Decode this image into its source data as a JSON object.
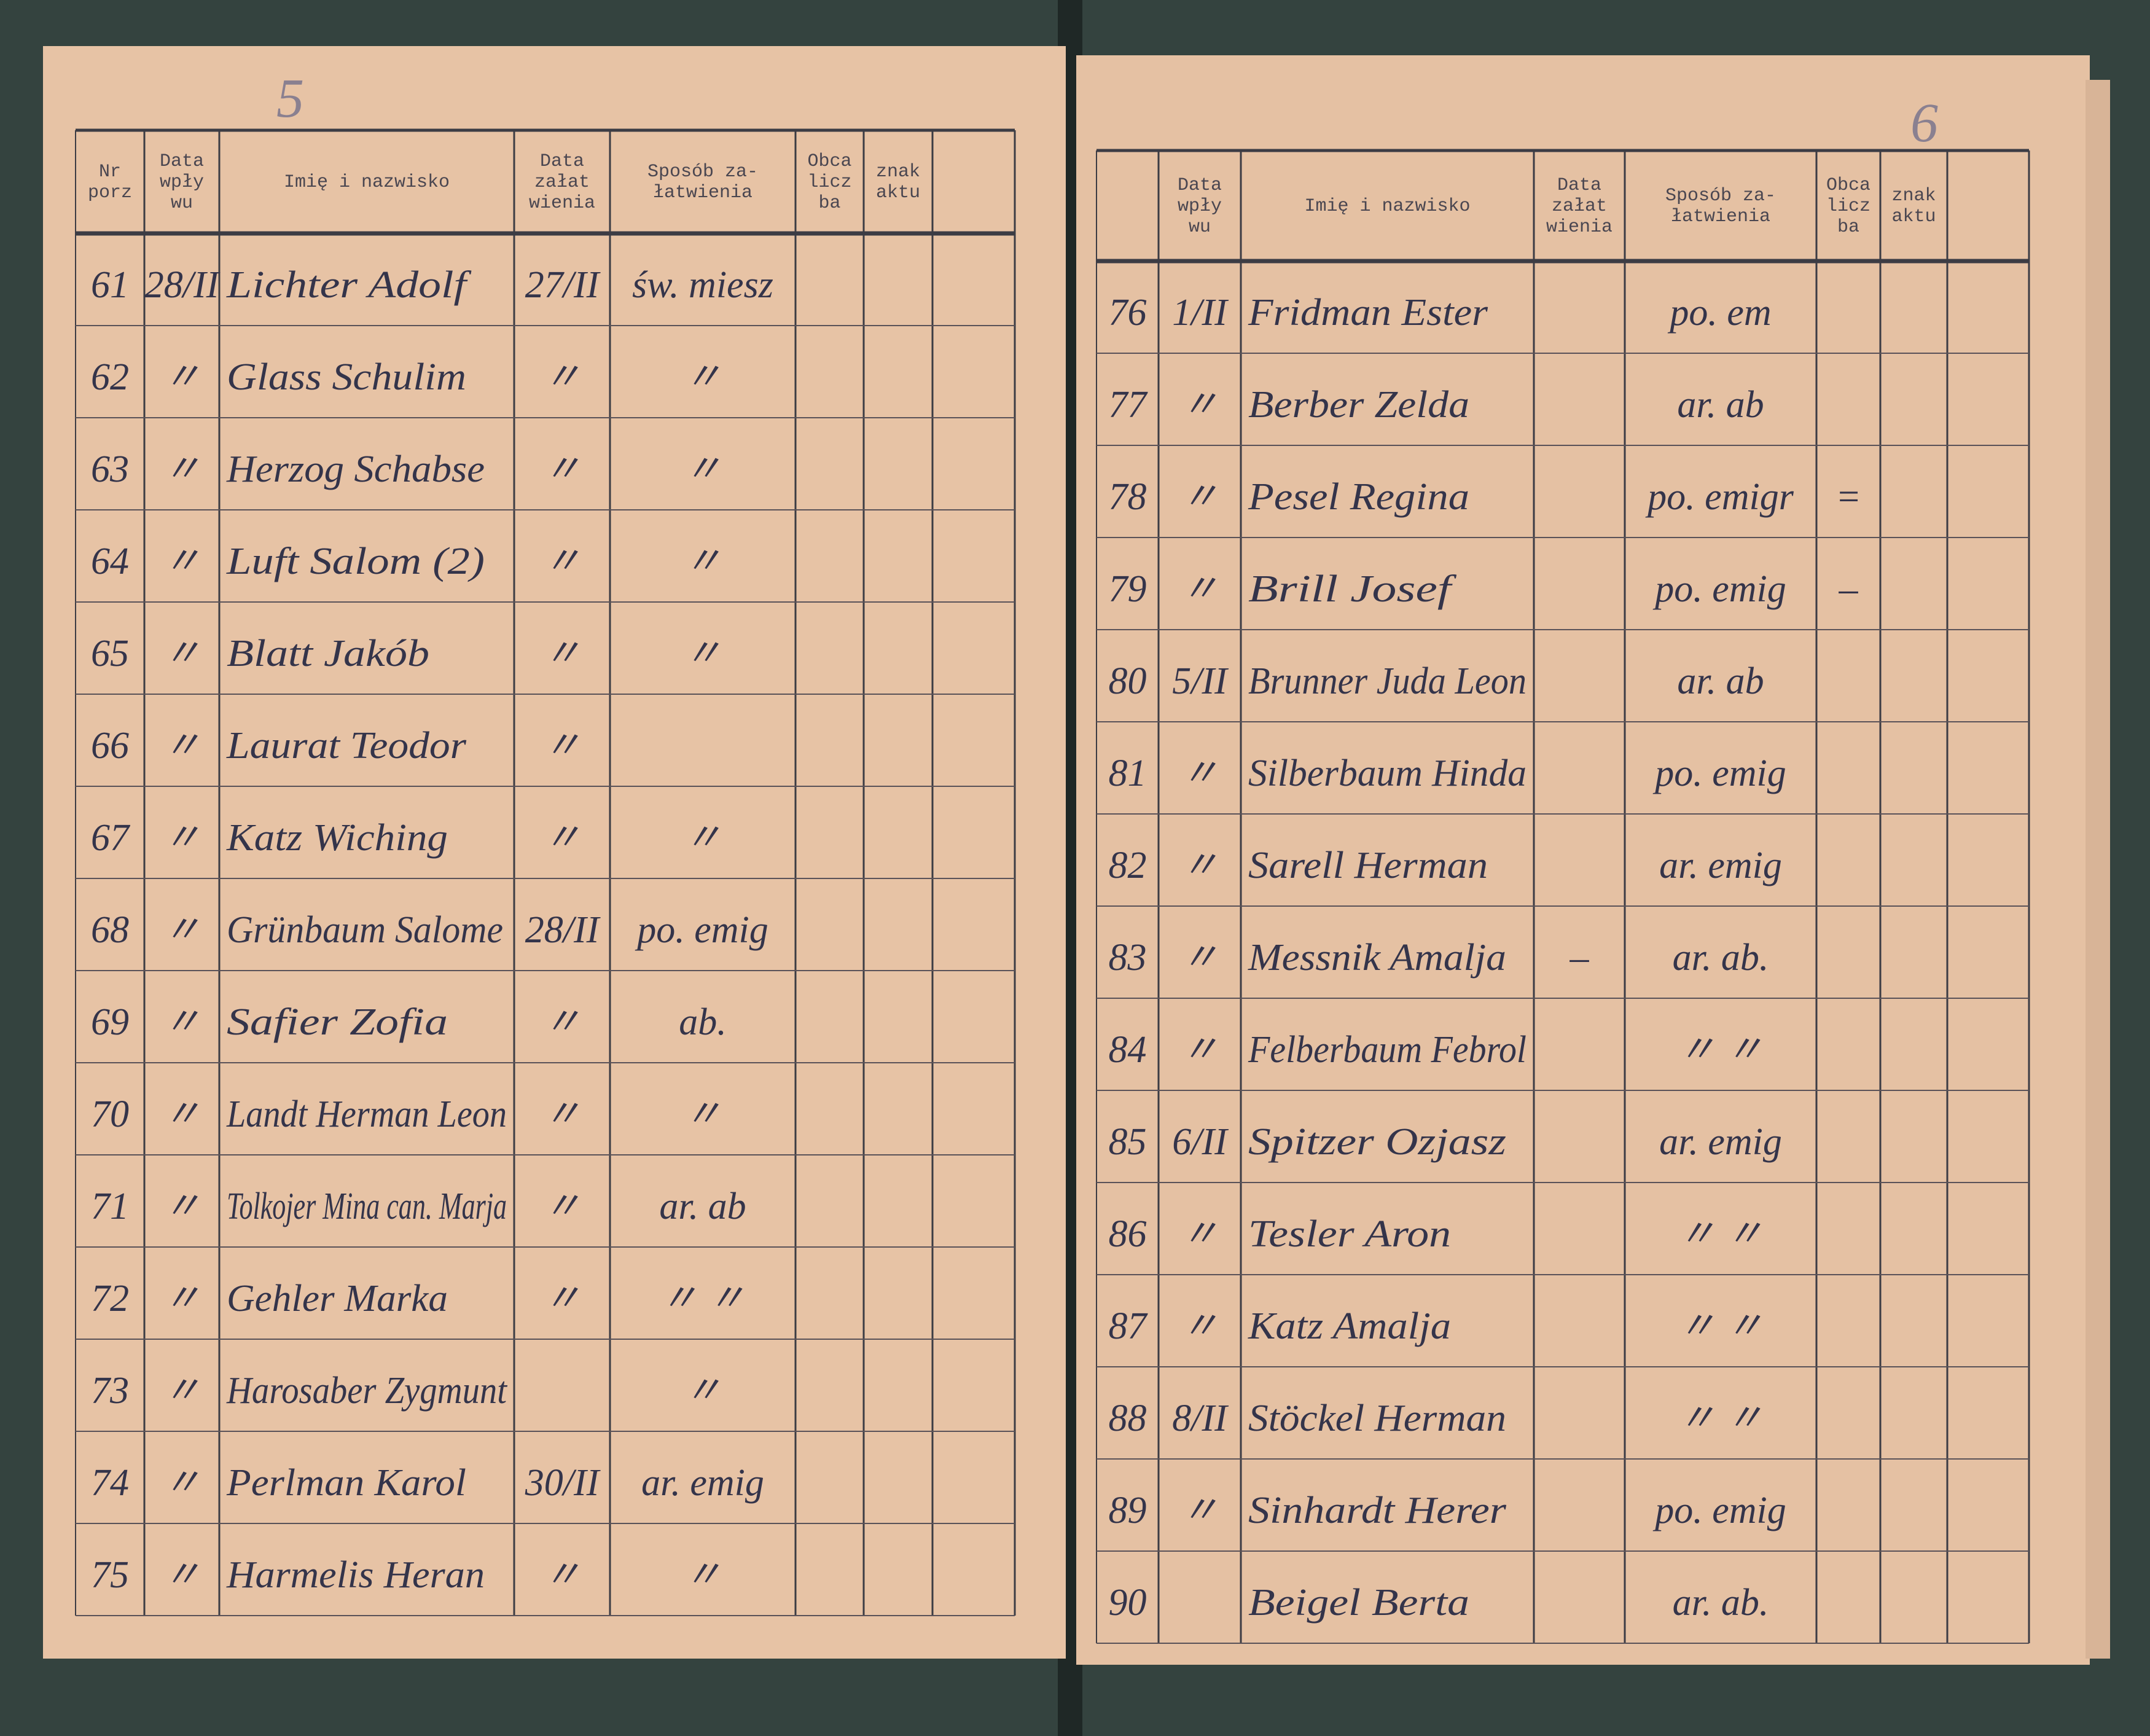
{
  "pages": [
    {
      "page_number": "5",
      "headers": [
        [
          "Nr",
          "porz"
        ],
        [
          "Data",
          "wpły",
          "wu"
        ],
        [
          "Imię i nazwisko"
        ],
        [
          "Data",
          "załat",
          "wienia"
        ],
        [
          "Sposób za-",
          "łatwienia"
        ],
        [
          "Obca",
          "licz",
          "ba"
        ],
        [
          "znak",
          "aktu"
        ]
      ],
      "rows": [
        {
          "nr": "61",
          "received": "28/II",
          "name": "Lichter Adolf",
          "done": "27/II",
          "method": "św. miesz"
        },
        {
          "nr": "62",
          "received": "〃",
          "name": "Glass Schulim",
          "done": "〃",
          "method": "〃"
        },
        {
          "nr": "63",
          "received": "〃",
          "name": "Herzog Schabse",
          "done": "〃",
          "method": "〃"
        },
        {
          "nr": "64",
          "received": "〃",
          "name": "Luft Salom (2)",
          "done": "〃",
          "method": "〃"
        },
        {
          "nr": "65",
          "received": "〃",
          "name": "Blatt Jakób",
          "done": "〃",
          "method": "〃"
        },
        {
          "nr": "66",
          "received": "〃",
          "name": "Laurat Teodor",
          "done": "〃"
        },
        {
          "nr": "67",
          "received": "〃",
          "name": "Katz Wiching",
          "done": "〃",
          "method": "〃"
        },
        {
          "nr": "68",
          "received": "〃",
          "name": "Grünbaum Salome",
          "done": "28/II",
          "method": "po. emig"
        },
        {
          "nr": "69",
          "received": "〃",
          "name": "Safier Zofia",
          "done": "〃",
          "method": "ab."
        },
        {
          "nr": "70",
          "received": "〃",
          "name": "Landt Herman Leon",
          "done": "〃",
          "method": "〃"
        },
        {
          "nr": "71",
          "received": "〃",
          "name": "Tolkojer Mina can. Marja",
          "done": "〃",
          "method": "ar. ab"
        },
        {
          "nr": "72",
          "received": "〃",
          "name": "Gehler Marka",
          "done": "〃",
          "method": "〃 〃"
        },
        {
          "nr": "73",
          "received": "〃",
          "name": "Harosaber Zygmunt",
          "method": "〃"
        },
        {
          "nr": "74",
          "received": "〃",
          "name": "Perlman Karol",
          "done": "30/II",
          "method": "ar. emig"
        },
        {
          "nr": "75",
          "received": "〃",
          "name": "Harmelis Heran",
          "done": "〃",
          "method": "〃"
        }
      ]
    },
    {
      "page_number": "6",
      "headers": [
        [
          "Data",
          "wpły",
          "wu"
        ],
        [
          "Imię i nazwisko"
        ],
        [
          "Data",
          "załat",
          "wienia"
        ],
        [
          "Sposób za-",
          "łatwienia"
        ],
        [
          "Obca",
          "licz",
          "ba"
        ],
        [
          "znak",
          "aktu"
        ]
      ],
      "rows": [
        {
          "nr": "76",
          "received": "1/II",
          "name": "Fridman Ester",
          "method": "po. em"
        },
        {
          "nr": "77",
          "received": "〃",
          "name": "Berber Zelda",
          "method": "ar. ab"
        },
        {
          "nr": "78",
          "received": "〃",
          "name": "Pesel Regina",
          "method": "po. emigr",
          "other": "="
        },
        {
          "nr": "79",
          "received": "〃",
          "name": "Brill Josef",
          "method": "po. emig",
          "other": "–"
        },
        {
          "nr": "80",
          "received": "5/II",
          "name": "Brunner Juda Leon",
          "method": "ar. ab"
        },
        {
          "nr": "81",
          "received": "〃",
          "name": "Silberbaum Hinda",
          "method": "po. emig"
        },
        {
          "nr": "82",
          "received": "〃",
          "name": "Sarell Herman",
          "method": "ar. emig"
        },
        {
          "nr": "83",
          "received": "〃",
          "name": "Messnik Amalja",
          "done": "–",
          "method": "ar. ab."
        },
        {
          "nr": "84",
          "received": "〃",
          "name": "Felberbaum Febrol",
          "method": "〃 〃"
        },
        {
          "nr": "85",
          "received": "6/II",
          "name": "Spitzer Ozjasz",
          "method": "ar. emig"
        },
        {
          "nr": "86",
          "received": "〃",
          "name": "Tesler Aron",
          "method": "〃 〃"
        },
        {
          "nr": "87",
          "received": "〃",
          "name": "Katz Amalja",
          "method": "〃 〃"
        },
        {
          "nr": "88",
          "received": "8/II",
          "name": "Stöckel Herman",
          "method": "〃 〃"
        },
        {
          "nr": "89",
          "received": "〃",
          "name": "Sinhardt Herer",
          "method": "po. emig"
        },
        {
          "nr": "90",
          "name": "Beigel Berta",
          "method": "ar. ab."
        }
      ]
    }
  ]
}
